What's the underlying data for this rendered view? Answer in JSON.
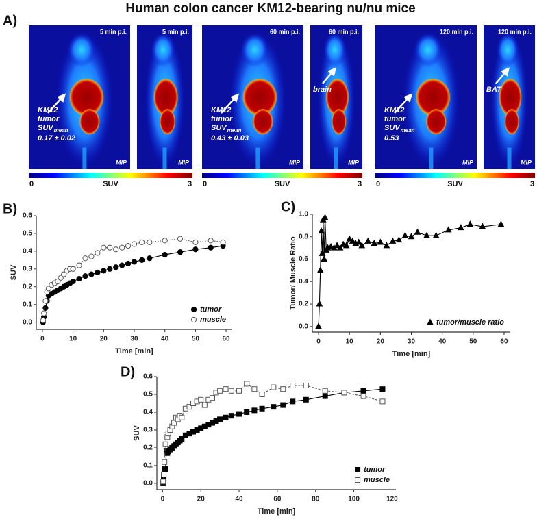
{
  "figure": {
    "title": "Human colon cancer KM12-bearing nu/nu mice",
    "panel_label": "A)",
    "images": [
      {
        "time": "5 min p.i.",
        "tag": "MIP",
        "annotation": {
          "lines": [
            "KM12",
            "tumor"
          ],
          "suv": "SUV",
          "sub": "mean",
          "value": "0.17 ± 0.02"
        }
      },
      {
        "time": "5 min p.i.",
        "tag": "MIP"
      },
      {
        "time": "60 min p.i.",
        "tag": "MIP",
        "annotation": {
          "lines": [
            "KM12",
            "tumor"
          ],
          "suv": "SUV",
          "sub": "mean",
          "value": "0.43 ± 0.03"
        }
      },
      {
        "time": "60 min p.i.",
        "tag": "MIP",
        "annotation": {
          "lines": [
            "brain"
          ]
        }
      },
      {
        "time": "120 min p.i.",
        "tag": "MIP",
        "annotation": {
          "lines": [
            "KM12",
            "tumor"
          ],
          "suv": "SUV",
          "sub": "mean",
          "value": "0.53"
        }
      },
      {
        "time": "120 min p.i.",
        "tag": "MIP",
        "annotation": {
          "lines": [
            "BAT"
          ]
        }
      }
    ],
    "colorbars": [
      {
        "min": "0",
        "label": "SUV",
        "max": "3"
      },
      {
        "min": "0",
        "label": "SUV",
        "max": "3"
      },
      {
        "min": "0",
        "label": "SUV",
        "max": "3"
      }
    ]
  },
  "chart_data": [
    {
      "type": "line",
      "panel_label": "B)",
      "x_label": "Time [min]",
      "y_label": "SUV",
      "xlim": [
        -2,
        62
      ],
      "xticks": [
        0,
        10,
        20,
        30,
        40,
        50,
        60
      ],
      "ylim": [
        -0.04,
        0.6
      ],
      "yticks": [
        {
          "value": 0,
          "label": "0.0"
        },
        0.1,
        0.2,
        0.3,
        0.4,
        0.5,
        0.6
      ],
      "legend": "lower right",
      "x": [
        0.2,
        0.5,
        1,
        1.5,
        2,
        3,
        4,
        5,
        6,
        7,
        8,
        9,
        10,
        12,
        14,
        16,
        18,
        20,
        22,
        24,
        26,
        28,
        30,
        32.5,
        35,
        40,
        45,
        50,
        55,
        59
      ],
      "series": [
        {
          "name": "tumor",
          "color": "#000000",
          "marker": "circle",
          "filled": true,
          "linestyle": "solid",
          "values": [
            0.0,
            0.03,
            0.08,
            0.12,
            0.15,
            0.16,
            0.17,
            0.18,
            0.19,
            0.2,
            0.21,
            0.22,
            0.23,
            0.245,
            0.26,
            0.27,
            0.28,
            0.29,
            0.3,
            0.31,
            0.32,
            0.33,
            0.34,
            0.35,
            0.36,
            0.38,
            0.395,
            0.41,
            0.42,
            0.43
          ]
        },
        {
          "name": "muscle",
          "color": "#555555",
          "marker": "circle",
          "filled": false,
          "linestyle": "dotted",
          "values": [
            0.01,
            0.05,
            0.12,
            0.17,
            0.19,
            0.21,
            0.22,
            0.23,
            0.25,
            0.27,
            0.29,
            0.3,
            0.3,
            0.32,
            0.36,
            0.37,
            0.39,
            0.42,
            0.42,
            0.41,
            0.42,
            0.43,
            0.44,
            0.45,
            0.45,
            0.46,
            0.47,
            0.45,
            0.46,
            0.45
          ]
        }
      ]
    },
    {
      "type": "line",
      "panel_label": "C)",
      "x_label": "Time [min]",
      "y_label": "Tumor/ Muscle Ratio",
      "xlim": [
        -2,
        62
      ],
      "xticks": [
        0,
        10,
        20,
        30,
        40,
        50,
        60
      ],
      "ylim": [
        -0.05,
        1.0
      ],
      "yticks": [
        {
          "value": 0,
          "label": "0.0"
        },
        0.2,
        0.4,
        0.6,
        0.8,
        {
          "value": 1,
          "label": "1.0"
        }
      ],
      "legend": "lower right",
      "x": [
        0,
        0.3,
        0.6,
        0.9,
        1.2,
        1.5,
        1.8,
        2.1,
        2.5,
        3,
        4,
        5,
        6,
        7,
        8,
        9,
        10,
        11,
        12,
        13,
        14,
        16,
        18,
        20,
        22,
        24,
        26,
        28,
        30,
        32,
        35,
        38,
        42,
        46,
        49,
        53,
        59
      ],
      "series": [
        {
          "name": "tumor/muscle ratio",
          "color": "#000000",
          "marker": "triangle",
          "filled": true,
          "linestyle": "solid",
          "values": [
            0,
            0.2,
            0.5,
            0.85,
            0.65,
            0.95,
            0.6,
            0.97,
            0.68,
            0.7,
            0.71,
            0.7,
            0.72,
            0.7,
            0.73,
            0.72,
            0.78,
            0.76,
            0.74,
            0.75,
            0.72,
            0.76,
            0.74,
            0.75,
            0.72,
            0.76,
            0.77,
            0.81,
            0.8,
            0.84,
            0.81,
            0.81,
            0.86,
            0.88,
            0.91,
            0.89,
            0.91
          ]
        }
      ]
    },
    {
      "type": "line",
      "panel_label": "D)",
      "x_label": "Time [min]",
      "y_label": "SUV",
      "xlim": [
        -3,
        122
      ],
      "xticks": [
        0,
        20,
        40,
        60,
        80,
        100,
        120
      ],
      "ylim": [
        -0.035,
        0.6
      ],
      "yticks": [
        {
          "value": 0,
          "label": "0.0"
        },
        0.1,
        0.2,
        0.3,
        0.4,
        0.5,
        0.6
      ],
      "legend": "lower right",
      "x": [
        0.3,
        0.6,
        1,
        1.5,
        2,
        2.5,
        3,
        4,
        5,
        6,
        7,
        8,
        9,
        10,
        12,
        14,
        16,
        18,
        20,
        22,
        24,
        26,
        28,
        30,
        33,
        36,
        40,
        44,
        48,
        52,
        58,
        63,
        68,
        75,
        85,
        95,
        105,
        115
      ],
      "series": [
        {
          "name": "tumor",
          "color": "#000000",
          "marker": "square",
          "filled": true,
          "linestyle": "solid",
          "values": [
            0,
            0.03,
            0.08,
            0.08,
            0.18,
            0.17,
            0.18,
            0.19,
            0.2,
            0.21,
            0.22,
            0.23,
            0.24,
            0.25,
            0.27,
            0.28,
            0.29,
            0.3,
            0.31,
            0.32,
            0.33,
            0.34,
            0.35,
            0.36,
            0.37,
            0.38,
            0.39,
            0.4,
            0.41,
            0.42,
            0.43,
            0.44,
            0.46,
            0.47,
            0.49,
            0.51,
            0.52,
            0.53
          ]
        },
        {
          "name": "muscle",
          "color": "#555555",
          "marker": "square",
          "filled": false,
          "linestyle": "dashed",
          "values": [
            0.01,
            0.05,
            0.12,
            0.22,
            0.27,
            0.26,
            0.28,
            0.3,
            0.32,
            0.34,
            0.37,
            0.36,
            0.38,
            0.37,
            0.42,
            0.43,
            0.45,
            0.46,
            0.47,
            0.44,
            0.47,
            0.48,
            0.51,
            0.52,
            0.53,
            0.52,
            0.52,
            0.56,
            0.53,
            0.5,
            0.54,
            0.53,
            0.55,
            0.55,
            0.52,
            0.51,
            0.49,
            0.46
          ]
        }
      ]
    }
  ]
}
